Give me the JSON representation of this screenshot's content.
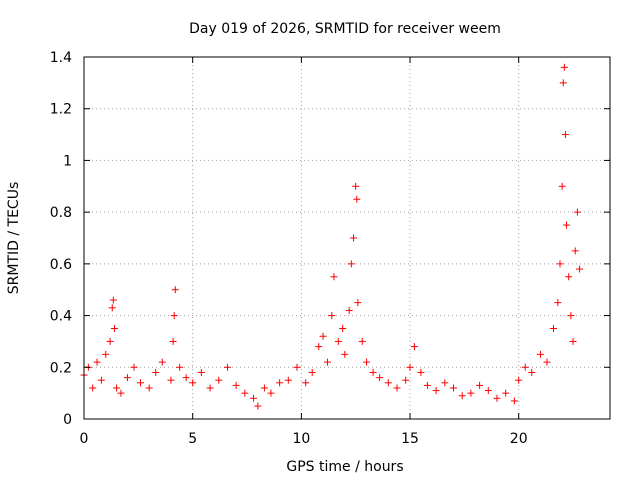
{
  "chart_data": {
    "type": "scatter",
    "title": "Day 019 of 2026, SRMTID for receiver weem",
    "xlabel": "GPS time / hours",
    "ylabel": "SRMTID / TECUs",
    "xlim": [
      0,
      24.2
    ],
    "ylim": [
      0,
      1.4
    ],
    "x_ticks": [
      0,
      5,
      10,
      15,
      20
    ],
    "x_tick_labels": [
      "0",
      "5",
      "10",
      "15",
      "20"
    ],
    "y_ticks": [
      0,
      0.2,
      0.4,
      0.6,
      0.8,
      1.0,
      1.2,
      1.4
    ],
    "y_tick_labels": [
      "0",
      "0.2",
      "0.4",
      "0.6",
      "0.8",
      "1",
      "1.2",
      "1.4"
    ],
    "grid": true,
    "marker": "+",
    "marker_color": "#ff0000",
    "series": [
      {
        "name": "weem",
        "x": [
          0.0,
          0.2,
          0.4,
          0.6,
          0.8,
          1.0,
          1.2,
          1.3,
          1.35,
          1.4,
          1.5,
          1.7,
          2.0,
          2.3,
          2.6,
          3.0,
          3.3,
          3.6,
          4.0,
          4.1,
          4.15,
          4.2,
          4.4,
          4.7,
          5.0,
          5.4,
          5.8,
          6.2,
          6.6,
          7.0,
          7.4,
          7.8,
          8.0,
          8.3,
          8.6,
          9.0,
          9.4,
          9.8,
          10.2,
          10.5,
          10.8,
          11.0,
          11.2,
          11.4,
          11.5,
          11.7,
          11.9,
          12.0,
          12.2,
          12.3,
          12.4,
          12.5,
          12.55,
          12.6,
          12.8,
          13.0,
          13.3,
          13.6,
          14.0,
          14.4,
          14.8,
          15.0,
          15.2,
          15.5,
          15.8,
          16.2,
          16.6,
          17.0,
          17.4,
          17.8,
          18.2,
          18.6,
          19.0,
          19.4,
          19.8,
          20.0,
          20.3,
          20.6,
          21.0,
          21.3,
          21.6,
          21.8,
          21.9,
          22.0,
          22.05,
          22.1,
          22.15,
          22.2,
          22.3,
          22.4,
          22.5,
          22.6,
          22.7,
          22.8
        ],
        "y": [
          0.17,
          0.2,
          0.12,
          0.22,
          0.15,
          0.25,
          0.3,
          0.43,
          0.46,
          0.35,
          0.12,
          0.1,
          0.16,
          0.2,
          0.14,
          0.12,
          0.18,
          0.22,
          0.15,
          0.3,
          0.4,
          0.5,
          0.2,
          0.16,
          0.14,
          0.18,
          0.12,
          0.15,
          0.2,
          0.13,
          0.1,
          0.08,
          0.05,
          0.12,
          0.1,
          0.14,
          0.15,
          0.2,
          0.14,
          0.18,
          0.28,
          0.32,
          0.22,
          0.4,
          0.55,
          0.3,
          0.35,
          0.25,
          0.42,
          0.6,
          0.7,
          0.9,
          0.85,
          0.45,
          0.3,
          0.22,
          0.18,
          0.16,
          0.14,
          0.12,
          0.15,
          0.2,
          0.28,
          0.18,
          0.13,
          0.11,
          0.14,
          0.12,
          0.09,
          0.1,
          0.13,
          0.11,
          0.08,
          0.1,
          0.07,
          0.15,
          0.2,
          0.18,
          0.25,
          0.22,
          0.35,
          0.45,
          0.6,
          0.9,
          1.3,
          1.36,
          1.1,
          0.75,
          0.55,
          0.4,
          0.3,
          0.65,
          0.8,
          0.58
        ]
      }
    ]
  }
}
